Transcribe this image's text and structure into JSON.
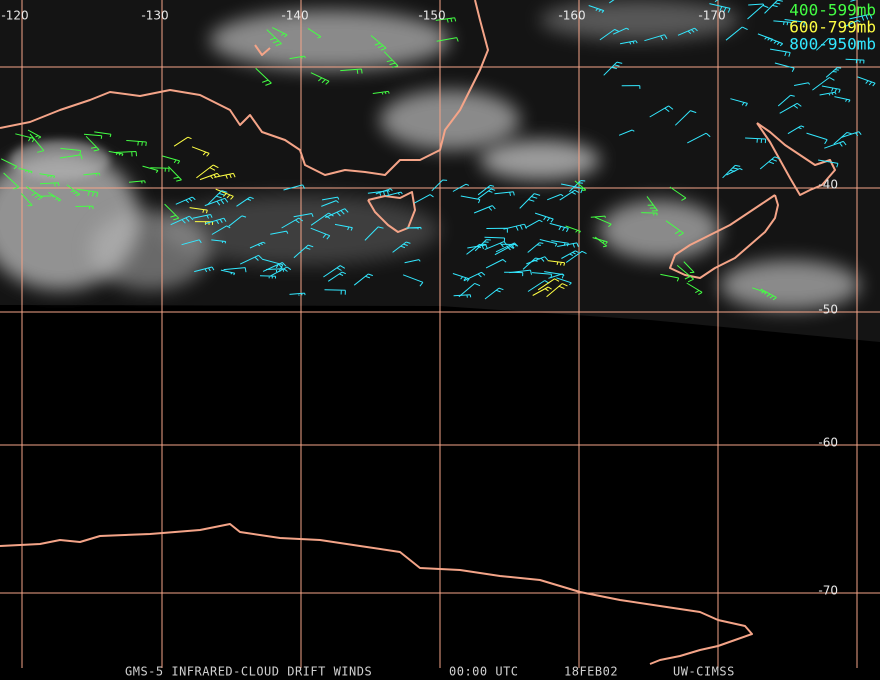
{
  "map": {
    "longitude_labels": [
      -120,
      -130,
      -140,
      -150,
      -160,
      -170
    ],
    "latitude_labels": [
      -40,
      -50,
      -60,
      -70
    ],
    "legend": [
      {
        "label": "400-599mb",
        "color": "#44ff44"
      },
      {
        "label": "600-799mb",
        "color": "#ffff44"
      },
      {
        "label": "800-950mb",
        "color": "#33e8ff"
      }
    ],
    "footer": [
      "GMS-5 INFRARED-CLOUD DRIFT WINDS",
      "00:00 UTC",
      "18FEB02",
      "UW-CIMSS"
    ]
  }
}
